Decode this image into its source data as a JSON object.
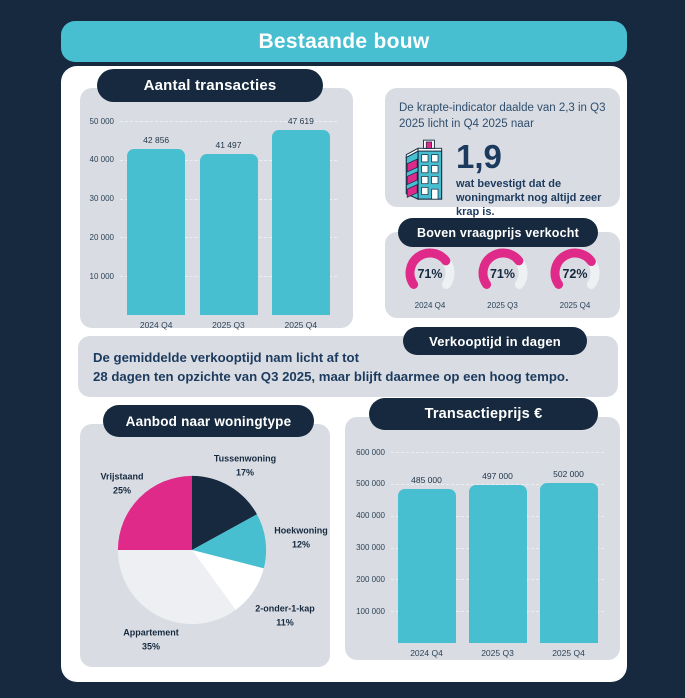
{
  "title": "Bestaande bouw",
  "colors": {
    "background_navy": "#16293f",
    "teal": "#48bfd1",
    "panel_gray": "#d9dde3",
    "magenta": "#e02a8a",
    "text_navy": "#1c3a5e",
    "gauge_track": "#eef1f4",
    "white": "#ffffff"
  },
  "krapte": {
    "intro": "De krapte-indicator daalde van 2,3 in Q3 2025 licht in Q4 2025 naar",
    "value": "1,9",
    "note": "wat bevestigt dat de woningmarkt nog altijd zeer krap is.",
    "icon": "building-icon"
  },
  "verkooptijd": {
    "pill": "Verkooptijd in dagen",
    "line1": "De gemiddelde verkooptijd nam licht af tot",
    "line2": "28 dagen ten opzichte van Q3 2025, maar blijft daarmee op een hoog tempo."
  },
  "chart_data": [
    {
      "id": "aantal-transacties",
      "type": "bar",
      "title": "Aantal transacties",
      "categories": [
        "2024 Q4",
        "2025 Q3",
        "2025 Q4"
      ],
      "values": [
        42856,
        41497,
        47619
      ],
      "value_labels": [
        "42 856",
        "41 497",
        "47 619"
      ],
      "yticks": [
        10000,
        20000,
        30000,
        40000,
        50000
      ],
      "ytick_labels": [
        "10 000",
        "20 000",
        "30 000",
        "40 000",
        "50 000"
      ],
      "ylim": [
        0,
        50000
      ],
      "xlabel": "",
      "ylabel": "",
      "grid": "dashed horizontal",
      "legend": "none",
      "bar_color": "#48bfd1"
    },
    {
      "id": "boven-vraagprijs-verkocht",
      "type": "gauge",
      "title": "Boven vraagprijs verkocht",
      "categories": [
        "2024 Q4",
        "2025 Q3",
        "2025 Q4"
      ],
      "values": [
        71,
        71,
        72
      ],
      "value_labels": [
        "71%",
        "71%",
        "72%"
      ],
      "max": 100,
      "progress_color": "#e02a8a",
      "track_color": "#eef1f4"
    },
    {
      "id": "aanbod-naar-woningtype",
      "type": "pie",
      "title": "Aanbod naar woningtype",
      "start_angle_deg": -90,
      "direction": "clockwise",
      "slices": [
        {
          "label": "Tussenwoning",
          "pct": 17,
          "pct_label": "17%",
          "color": "#16293f"
        },
        {
          "label": "Hoekwoning",
          "pct": 12,
          "pct_label": "12%",
          "color": "#48bfd1"
        },
        {
          "label": "2-onder-1-kap",
          "pct": 11,
          "pct_label": "11%",
          "color": "#ffffff"
        },
        {
          "label": "Appartement",
          "pct": 35,
          "pct_label": "35%",
          "color": "#edeff2"
        },
        {
          "label": "Vrijstaand",
          "pct": 25,
          "pct_label": "25%",
          "color": "#e02a8a"
        }
      ]
    },
    {
      "id": "transactieprijs",
      "type": "bar",
      "title": "Transactieprijs €",
      "categories": [
        "2024 Q4",
        "2025 Q3",
        "2025 Q4"
      ],
      "values": [
        485000,
        497000,
        502000
      ],
      "value_labels": [
        "485 000",
        "497 000",
        "502 000"
      ],
      "yticks": [
        100000,
        200000,
        300000,
        400000,
        500000,
        600000
      ],
      "ytick_labels": [
        "100 000",
        "200 000",
        "300 000",
        "400 000",
        "500 000",
        "600 000"
      ],
      "ylim": [
        0,
        600000
      ],
      "xlabel": "",
      "ylabel": "",
      "grid": "dashed horizontal",
      "legend": "none",
      "bar_color": "#48bfd1"
    }
  ]
}
